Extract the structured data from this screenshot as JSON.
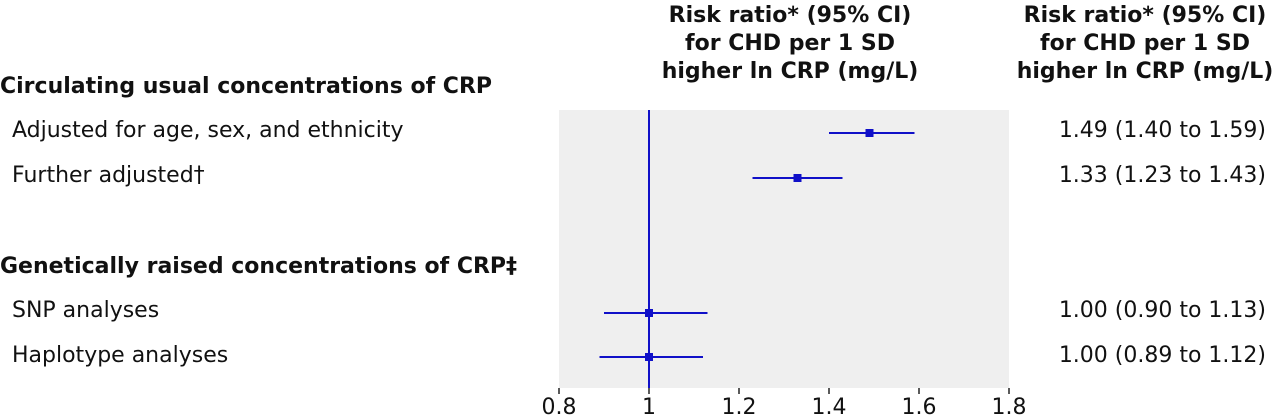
{
  "chart_data": {
    "type": "forest",
    "column_header": "Risk ratio* (95% CI)\nfor CHD per 1 SD\nhigher ln CRP (mg/L)",
    "value_header": "Risk ratio* (95% CI)\nfor CHD per 1 SD\nhigher ln CRP (mg/L)",
    "reference_line": 1,
    "xlim": [
      0.8,
      1.8
    ],
    "xticks": [
      0.8,
      1,
      1.2,
      1.4,
      1.6,
      1.8
    ],
    "xtick_labels": [
      "0.8",
      "1",
      "1.2",
      "1.4",
      "1.6",
      "1.8"
    ],
    "sections": [
      {
        "title": "Circulating usual concentrations of CRP",
        "rows": [
          {
            "label": "Adjusted for age, sex, and ethnicity",
            "estimate": 1.49,
            "lower": 1.4,
            "upper": 1.59,
            "text": "1.49 (1.40 to 1.59)"
          },
          {
            "label": "Further adjusted†",
            "estimate": 1.33,
            "lower": 1.23,
            "upper": 1.43,
            "text": "1.33 (1.23 to 1.43)"
          }
        ]
      },
      {
        "title": "Genetically raised concentrations of CRP‡",
        "rows": [
          {
            "label": "SNP analyses",
            "estimate": 1.0,
            "lower": 0.9,
            "upper": 1.13,
            "text": "1.00 (0.90 to 1.13)"
          },
          {
            "label": "Haplotype analyses",
            "estimate": 1.0,
            "lower": 0.89,
            "upper": 1.12,
            "text": "1.00 (0.89 to 1.12)"
          }
        ]
      }
    ],
    "colors": {
      "marker": "#1010c8",
      "panel": "#efefef"
    }
  }
}
